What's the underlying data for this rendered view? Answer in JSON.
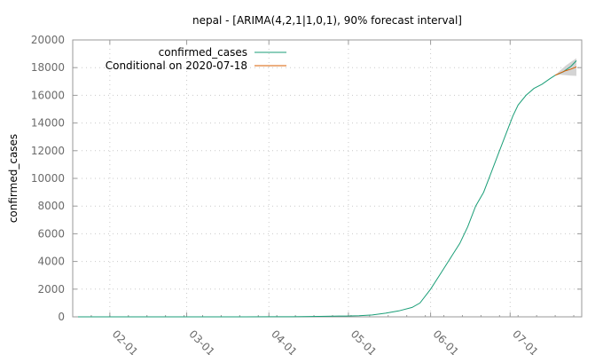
{
  "chart_data": {
    "type": "line",
    "title": "nepal -  [ARIMA(4,2,1|1,0,1), 90% forecast interval]",
    "ylabel": "confirmed_cases",
    "xlabel": "",
    "ylim": [
      0,
      20000
    ],
    "xlim": [
      "2020-01-18",
      "2020-07-28"
    ],
    "grid": true,
    "legend_position": "top-left",
    "y_ticks": [
      "0",
      "2000",
      "4000",
      "6000",
      "8000",
      "10000",
      "12000",
      "14000",
      "16000",
      "18000",
      "20000"
    ],
    "x_ticks": [
      {
        "date": "2020-02-01",
        "label": "02-01"
      },
      {
        "date": "2020-03-01",
        "label": "03-01"
      },
      {
        "date": "2020-04-01",
        "label": "04-01"
      },
      {
        "date": "2020-05-01",
        "label": "05-01"
      },
      {
        "date": "2020-06-01",
        "label": "06-01"
      },
      {
        "date": "2020-07-01",
        "label": "07-01"
      }
    ],
    "series": [
      {
        "name": "confirmed_cases",
        "color": "#1a9e77",
        "points": [
          [
            "2020-01-20",
            0
          ],
          [
            "2020-01-25",
            1
          ],
          [
            "2020-02-15",
            1
          ],
          [
            "2020-03-10",
            1
          ],
          [
            "2020-03-23",
            2
          ],
          [
            "2020-04-01",
            5
          ],
          [
            "2020-04-10",
            9
          ],
          [
            "2020-04-20",
            31
          ],
          [
            "2020-04-25",
            49
          ],
          [
            "2020-04-30",
            57
          ],
          [
            "2020-05-05",
            82
          ],
          [
            "2020-05-10",
            134
          ],
          [
            "2020-05-15",
            266
          ],
          [
            "2020-05-20",
            427
          ],
          [
            "2020-05-25",
            682
          ],
          [
            "2020-05-28",
            1000
          ],
          [
            "2020-06-01",
            2000
          ],
          [
            "2020-06-05",
            3200
          ],
          [
            "2020-06-09",
            4400
          ],
          [
            "2020-06-12",
            5300
          ],
          [
            "2020-06-15",
            6500
          ],
          [
            "2020-06-18",
            8000
          ],
          [
            "2020-06-21",
            9000
          ],
          [
            "2020-06-24",
            10500
          ],
          [
            "2020-06-27",
            12000
          ],
          [
            "2020-06-30",
            13500
          ],
          [
            "2020-07-02",
            14500
          ],
          [
            "2020-07-04",
            15300
          ],
          [
            "2020-07-07",
            16000
          ],
          [
            "2020-07-10",
            16500
          ],
          [
            "2020-07-13",
            16800
          ],
          [
            "2020-07-16",
            17200
          ],
          [
            "2020-07-18",
            17450
          ],
          [
            "2020-07-21",
            17700
          ],
          [
            "2020-07-24",
            18100
          ],
          [
            "2020-07-26",
            18500
          ]
        ]
      },
      {
        "name": "Conditional on 2020-07-18",
        "color": "#d95f02",
        "points": [
          [
            "2020-07-18",
            17450
          ],
          [
            "2020-07-20",
            17620
          ],
          [
            "2020-07-22",
            17780
          ],
          [
            "2020-07-24",
            17900
          ],
          [
            "2020-07-26",
            18050
          ]
        ]
      }
    ],
    "forecast_interval": {
      "color": "#cccccc",
      "upper": [
        [
          "2020-07-18",
          17450
        ],
        [
          "2020-07-20",
          17820
        ],
        [
          "2020-07-22",
          18150
        ],
        [
          "2020-07-24",
          18420
        ],
        [
          "2020-07-26",
          18680
        ]
      ],
      "lower": [
        [
          "2020-07-18",
          17450
        ],
        [
          "2020-07-20",
          17480
        ],
        [
          "2020-07-22",
          17450
        ],
        [
          "2020-07-24",
          17420
        ],
        [
          "2020-07-26",
          17400
        ]
      ]
    }
  }
}
